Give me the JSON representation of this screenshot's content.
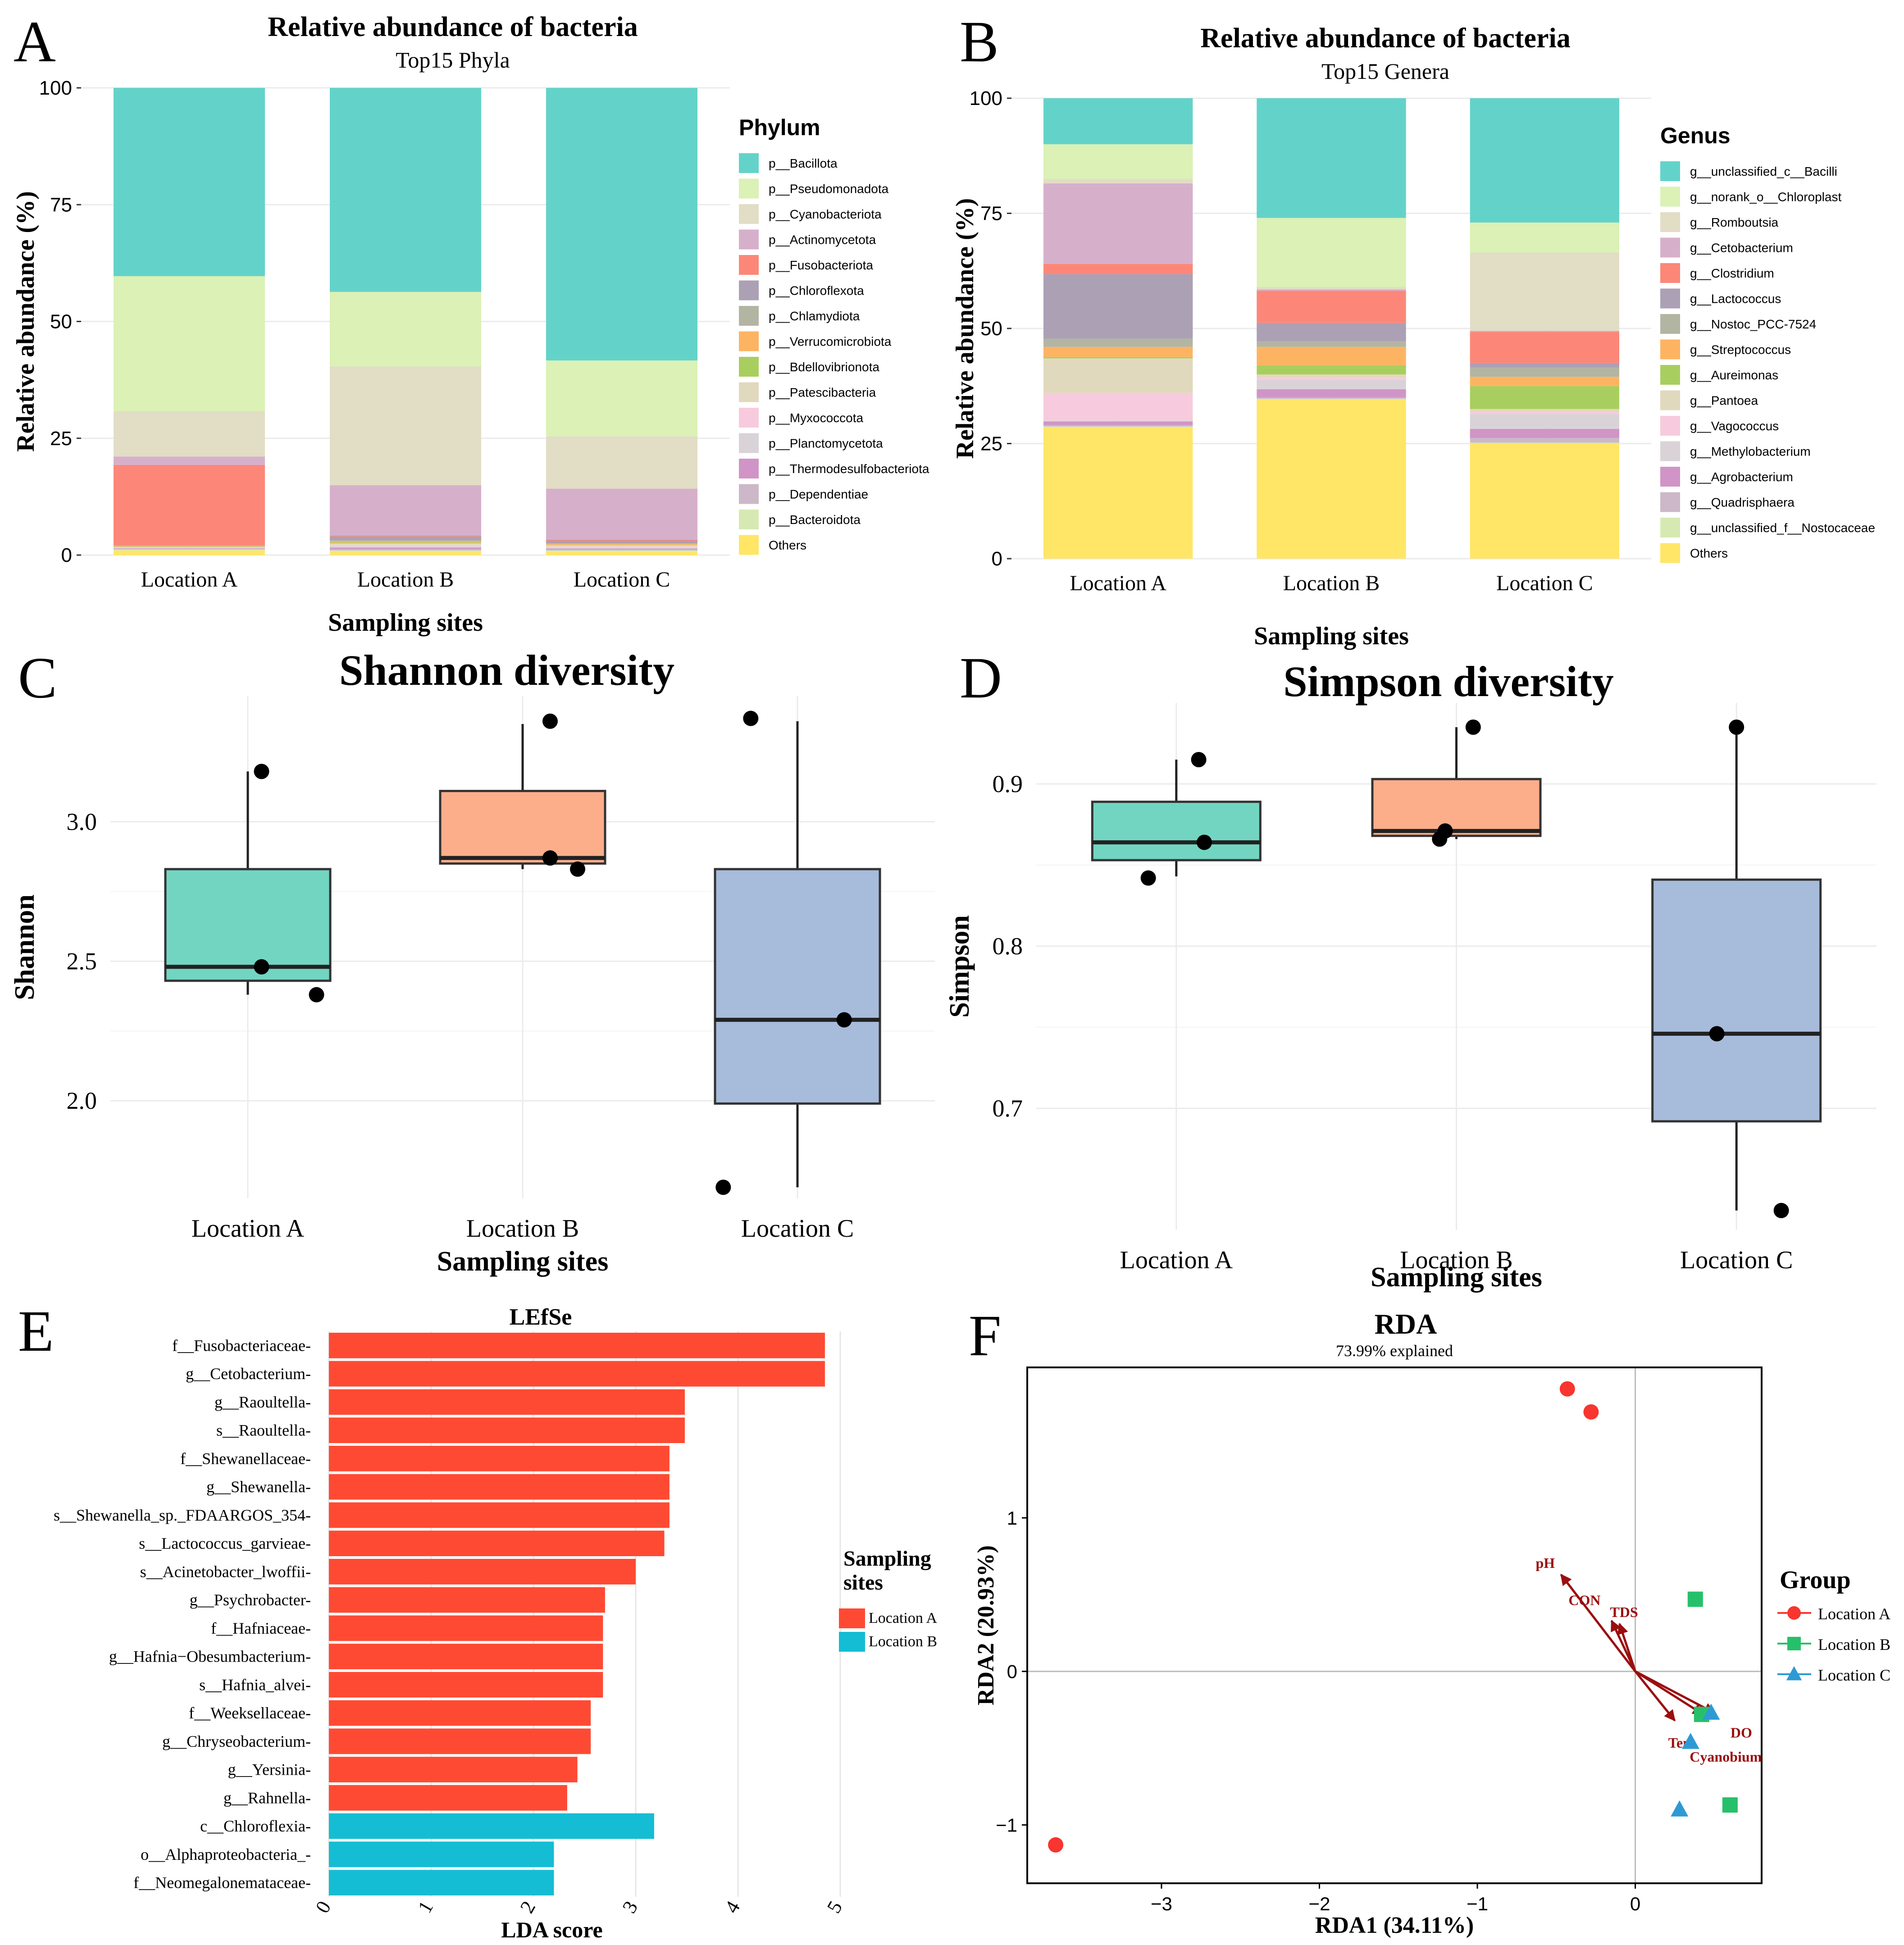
{
  "panels": {
    "A": {
      "letter": "A"
    },
    "B": {
      "letter": "B"
    },
    "C": {
      "letter": "C"
    },
    "D": {
      "letter": "D"
    },
    "E": {
      "letter": "E"
    },
    "F": {
      "letter": "F"
    }
  },
  "chart_data": [
    {
      "id": "A",
      "type": "bar",
      "stacked": true,
      "title": "Relative abundance of bacteria",
      "subtitle": "Top15 Phyla",
      "xlabel": "Sampling sites",
      "ylabel": "Relative abundance (%)",
      "ylim": [
        0,
        100
      ],
      "yticks": [
        0,
        25,
        50,
        75,
        100
      ],
      "categories": [
        "Location A",
        "Location B",
        "Location C"
      ],
      "legend_title": "Phylum",
      "series": [
        {
          "name": "Others",
          "color": "#FFE666",
          "values": [
            1.0,
            0.8,
            0.8
          ]
        },
        {
          "name": "p__Bacteroidota",
          "color": "#D7E9B3",
          "values": [
            0.2,
            0.2,
            0.2
          ]
        },
        {
          "name": "p__Dependentiae",
          "color": "#CCB8C8",
          "values": [
            0.1,
            0.3,
            0.2
          ]
        },
        {
          "name": "p__Thermodesulfobacteriota",
          "color": "#D095C6",
          "values": [
            0.1,
            0.3,
            0.2
          ]
        },
        {
          "name": "p__Planctomycetota",
          "color": "#D9D3D8",
          "values": [
            0.1,
            0.3,
            0.2
          ]
        },
        {
          "name": "p__Myxococcota",
          "color": "#F7CBDD",
          "values": [
            0.1,
            0.2,
            0.2
          ]
        },
        {
          "name": "p__Patescibacteria",
          "color": "#E1D9BD",
          "values": [
            0.1,
            0.4,
            0.3
          ]
        },
        {
          "name": "p__Bdellovibrionota",
          "color": "#A9CE60",
          "values": [
            0.1,
            0.2,
            0.1
          ]
        },
        {
          "name": "p__Verrucomicrobiota",
          "color": "#FDB462",
          "values": [
            0.1,
            0.3,
            0.2
          ]
        },
        {
          "name": "p__Chlamydiota",
          "color": "#B3B5A3",
          "values": [
            0.1,
            0.2,
            0.1
          ]
        },
        {
          "name": "p__Chloroflexota",
          "color": "#ACA0B5",
          "values": [
            0.1,
            0.8,
            0.6
          ]
        },
        {
          "name": "p__Fusobacteriota",
          "color": "#FC8778",
          "values": [
            17.2,
            0.2,
            0.2
          ]
        },
        {
          "name": "p__Actinomycetota",
          "color": "#D6B0CB",
          "values": [
            1.8,
            10.8,
            11.0
          ]
        },
        {
          "name": "p__Cyanobacteriota",
          "color": "#E2DDC5",
          "values": [
            9.7,
            25.5,
            11.3
          ]
        },
        {
          "name": "p__Pseudomonadota",
          "color": "#DBF1B5",
          "values": [
            28.9,
            16.0,
            16.3
          ]
        },
        {
          "name": "p__Bacillota",
          "color": "#63D3C9",
          "values": [
            40.3,
            43.8,
            58.7
          ]
        }
      ]
    },
    {
      "id": "B",
      "type": "bar",
      "stacked": true,
      "title": "Relative abundance of bacteria",
      "subtitle": "Top15 Genera",
      "xlabel": "Sampling sites",
      "ylabel": "Relative abundance (%)",
      "ylim": [
        0,
        100
      ],
      "yticks": [
        0,
        25,
        50,
        75,
        100
      ],
      "categories": [
        "Location A",
        "Location B",
        "Location C"
      ],
      "legend_title": "Genus",
      "series": [
        {
          "name": "Others",
          "color": "#FFE666",
          "values": [
            28.5,
            34.5,
            25.0
          ]
        },
        {
          "name": "g__unclassified_f__Nostocaceae",
          "color": "#D7E9B3",
          "values": [
            0.2,
            0.2,
            0.2
          ]
        },
        {
          "name": "g__Quadrisphaera",
          "color": "#CCB8C8",
          "values": [
            0.3,
            0.3,
            1.0
          ]
        },
        {
          "name": "g__Agrobacterium",
          "color": "#D095C6",
          "values": [
            0.8,
            1.8,
            2.0
          ]
        },
        {
          "name": "g__Methylobacterium",
          "color": "#D9D3D8",
          "values": [
            0.2,
            2.0,
            3.2
          ]
        },
        {
          "name": "g__Vagococcus",
          "color": "#F7CBDD",
          "values": [
            6.0,
            0.5,
            0.5
          ]
        },
        {
          "name": "g__Pantoea",
          "color": "#E1D9BD",
          "values": [
            7.5,
            0.7,
            0.6
          ]
        },
        {
          "name": "g__Aureimonas",
          "color": "#A9CE60",
          "values": [
            0.3,
            2.0,
            5.0
          ]
        },
        {
          "name": "g__Streptococcus",
          "color": "#FDB462",
          "values": [
            2.2,
            4.0,
            2.0
          ]
        },
        {
          "name": "g__Nostoc_PCC-7524",
          "color": "#B3B5A3",
          "values": [
            1.8,
            1.2,
            2.0
          ]
        },
        {
          "name": "g__Lactococcus",
          "color": "#ACA0B5",
          "values": [
            14.0,
            4.0,
            1.0
          ]
        },
        {
          "name": "g__Clostridium",
          "color": "#FC8778",
          "values": [
            2.2,
            7.0,
            6.8
          ]
        },
        {
          "name": "g__Cetobacterium",
          "color": "#D6B0CB",
          "values": [
            17.5,
            0.3,
            0.2
          ]
        },
        {
          "name": "g__Romboutsia",
          "color": "#E2DDC5",
          "values": [
            1.0,
            0.5,
            17.0
          ]
        },
        {
          "name": "g__norank_o__Chloroplast",
          "color": "#DBF1B5",
          "values": [
            7.5,
            15.0,
            6.5
          ]
        },
        {
          "name": "g__unclassified_c__Bacilli",
          "color": "#63D3C9",
          "values": [
            10.0,
            26.0,
            27.0
          ]
        }
      ]
    },
    {
      "id": "C",
      "type": "box",
      "title": "Shannon diversity",
      "xlabel": "Sampling sites",
      "ylabel": "Shannon",
      "ylim": [
        1.65,
        3.45
      ],
      "yticks": [
        2.0,
        2.5,
        3.0
      ],
      "ytick_labels": [
        "2.0",
        "2.5",
        "3.0"
      ],
      "categories": [
        "Location A",
        "Location B",
        "Location C"
      ],
      "boxes": [
        {
          "name": "Location A",
          "color": "#72D5C2",
          "q1": 2.43,
          "median": 2.48,
          "q3": 2.83,
          "whisker_low": 2.38,
          "whisker_high": 3.18
        },
        {
          "name": "Location B",
          "color": "#FCAE8B",
          "q1": 2.85,
          "median": 2.87,
          "q3": 3.11,
          "whisker_low": 2.83,
          "whisker_high": 3.35
        },
        {
          "name": "Location C",
          "color": "#A7BBDB",
          "q1": 1.99,
          "median": 2.29,
          "q3": 2.83,
          "whisker_low": 1.69,
          "whisker_high": 3.36
        }
      ],
      "points": [
        {
          "group": 0,
          "dx": 0.05,
          "y": 3.18
        },
        {
          "group": 0,
          "dx": 0.05,
          "y": 2.48
        },
        {
          "group": 0,
          "dx": 0.25,
          "y": 2.38
        },
        {
          "group": 1,
          "dx": 0.1,
          "y": 3.36
        },
        {
          "group": 1,
          "dx": 0.1,
          "y": 2.87
        },
        {
          "group": 1,
          "dx": 0.2,
          "y": 2.83
        },
        {
          "group": 2,
          "dx": -0.17,
          "y": 3.37
        },
        {
          "group": 2,
          "dx": 0.17,
          "y": 2.29
        },
        {
          "group": 2,
          "dx": -0.27,
          "y": 1.69
        }
      ]
    },
    {
      "id": "D",
      "type": "box",
      "title": "Simpson diversity",
      "xlabel": "Sampling sites",
      "ylabel": "Simpson",
      "ylim": [
        0.625,
        0.95
      ],
      "yticks": [
        0.7,
        0.8,
        0.9
      ],
      "ytick_labels": [
        "0.7",
        "0.8",
        "0.9"
      ],
      "categories": [
        "Location A",
        "Location B",
        "Location C"
      ],
      "boxes": [
        {
          "name": "Location A",
          "color": "#72D5C2",
          "q1": 0.853,
          "median": 0.864,
          "q3": 0.889,
          "whisker_low": 0.843,
          "whisker_high": 0.915
        },
        {
          "name": "Location B",
          "color": "#FCAE8B",
          "q1": 0.868,
          "median": 0.871,
          "q3": 0.903,
          "whisker_low": 0.866,
          "whisker_high": 0.935
        },
        {
          "name": "Location C",
          "color": "#A7BBDB",
          "q1": 0.692,
          "median": 0.746,
          "q3": 0.841,
          "whisker_low": 0.637,
          "whisker_high": 0.935
        }
      ],
      "points": [
        {
          "group": 0,
          "dx": 0.08,
          "y": 0.915
        },
        {
          "group": 0,
          "dx": 0.1,
          "y": 0.864
        },
        {
          "group": 0,
          "dx": -0.1,
          "y": 0.842
        },
        {
          "group": 1,
          "dx": 0.06,
          "y": 0.935
        },
        {
          "group": 1,
          "dx": -0.04,
          "y": 0.871
        },
        {
          "group": 1,
          "dx": -0.06,
          "y": 0.866
        },
        {
          "group": 2,
          "dx": 0.0,
          "y": 0.935
        },
        {
          "group": 2,
          "dx": -0.07,
          "y": 0.746
        },
        {
          "group": 2,
          "dx": 0.16,
          "y": 0.637
        }
      ]
    },
    {
      "id": "E",
      "type": "bar",
      "orientation": "horizontal",
      "title": "LEfSe",
      "xlabel": "LDA score",
      "xlim": [
        0,
        5
      ],
      "xticks": [
        0,
        1,
        2,
        3,
        4,
        5
      ],
      "legend_title": "Sampling sites",
      "legend": [
        {
          "name": "Location A",
          "color": "#FF4A33"
        },
        {
          "name": "Location B",
          "color": "#14BDD3"
        }
      ],
      "bars": [
        {
          "label": "f__Fusobacteriaceae-",
          "value": 4.85,
          "group": "Location A"
        },
        {
          "label": "g__Cetobacterium-",
          "value": 4.85,
          "group": "Location A"
        },
        {
          "label": "g__Raoultella-",
          "value": 3.48,
          "group": "Location A"
        },
        {
          "label": "s__Raoultella-",
          "value": 3.48,
          "group": "Location A"
        },
        {
          "label": "f__Shewanellaceae-",
          "value": 3.33,
          "group": "Location A"
        },
        {
          "label": "g__Shewanella-",
          "value": 3.33,
          "group": "Location A"
        },
        {
          "label": "s__Shewanella_sp._FDAARGOS_354-",
          "value": 3.33,
          "group": "Location A"
        },
        {
          "label": "s__Lactococcus_garvieae-",
          "value": 3.28,
          "group": "Location A"
        },
        {
          "label": "s__Acinetobacter_lwoffii-",
          "value": 3.0,
          "group": "Location A"
        },
        {
          "label": "g__Psychrobacter-",
          "value": 2.7,
          "group": "Location A"
        },
        {
          "label": "f__Hafniaceae-",
          "value": 2.68,
          "group": "Location A"
        },
        {
          "label": "g__Hafnia−Obesumbacterium-",
          "value": 2.68,
          "group": "Location A"
        },
        {
          "label": "s__Hafnia_alvei-",
          "value": 2.68,
          "group": "Location A"
        },
        {
          "label": "f__Weeksellaceae-",
          "value": 2.56,
          "group": "Location A"
        },
        {
          "label": "g__Chryseobacterium-",
          "value": 2.56,
          "group": "Location A"
        },
        {
          "label": "g__Yersinia-",
          "value": 2.43,
          "group": "Location A"
        },
        {
          "label": "g__Rahnella-",
          "value": 2.33,
          "group": "Location A"
        },
        {
          "label": "c__Chloroflexia-",
          "value": 3.18,
          "group": "Location B"
        },
        {
          "label": "o__Alphaproteobacteria_-",
          "value": 2.2,
          "group": "Location B"
        },
        {
          "label": "f__Neomegalonemataceae-",
          "value": 2.2,
          "group": "Location B"
        }
      ]
    },
    {
      "id": "F",
      "type": "scatter",
      "title": "RDA",
      "subtitle": "73.99% explained",
      "xlabel": "RDA1 (34.11%)",
      "ylabel": "RDA2 (20.93%)",
      "xlim": [
        -3.85,
        0.8
      ],
      "ylim": [
        -1.38,
        1.98
      ],
      "xticks": [
        -3,
        -2,
        -1,
        0
      ],
      "xtick_labels": [
        "−3",
        "−2",
        "−1",
        "0"
      ],
      "yticks": [
        -1,
        0,
        1
      ],
      "ytick_labels": [
        "−1",
        "0",
        "1"
      ],
      "legend_title": "Group",
      "groups": [
        {
          "name": "Location A",
          "color": "#F8352E",
          "shape": "circle",
          "points": [
            [
              -0.43,
              1.84
            ],
            [
              -0.28,
              1.69
            ],
            [
              -3.67,
              -1.13
            ]
          ]
        },
        {
          "name": "Location B",
          "color": "#27C06A",
          "shape": "square",
          "points": [
            [
              0.38,
              0.47
            ],
            [
              0.6,
              -0.87
            ],
            [
              0.42,
              -0.28
            ]
          ]
        },
        {
          "name": "Location C",
          "color": "#2E9AD4",
          "shape": "triangle",
          "points": [
            [
              0.28,
              -0.9
            ],
            [
              0.35,
              -0.46
            ],
            [
              0.48,
              -0.27
            ]
          ]
        }
      ],
      "arrows": [
        {
          "label": "pH",
          "x": -0.47,
          "y": 0.63
        },
        {
          "label": "CON",
          "x": -0.15,
          "y": 0.33
        },
        {
          "label": "TDS",
          "x": -0.1,
          "y": 0.31
        },
        {
          "label": "DO",
          "x": 0.5,
          "y": -0.27
        },
        {
          "label": "Tem",
          "x": 0.25,
          "y": -0.32
        },
        {
          "label": "Cyanobium",
          "x": 0.43,
          "y": -0.28
        }
      ]
    }
  ]
}
